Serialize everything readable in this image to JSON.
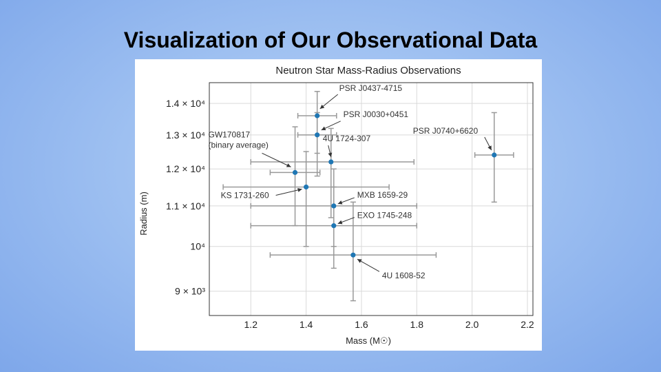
{
  "slide": {
    "title": "Visualization of Our Observational Data"
  },
  "chart_data": {
    "type": "scatter",
    "title": "Neutron Star Mass-Radius Observations",
    "xlabel": "Mass (M☉)",
    "ylabel": "Radius (m)",
    "xlim": [
      1.05,
      2.22
    ],
    "ylim": [
      8500,
      14700
    ],
    "y_scale": "log",
    "grid": true,
    "x_ticks": [
      {
        "value": 1.2,
        "label": "1.2"
      },
      {
        "value": 1.4,
        "label": "1.4"
      },
      {
        "value": 1.6,
        "label": "1.6"
      },
      {
        "value": 1.8,
        "label": "1.8"
      },
      {
        "value": 2.0,
        "label": "2.0"
      },
      {
        "value": 2.2,
        "label": "2.2"
      }
    ],
    "y_ticks": [
      {
        "value": 9000,
        "label": "9 × 10³"
      },
      {
        "value": 10000,
        "label": "10⁴"
      },
      {
        "value": 11000,
        "label": "1.1 × 10⁴"
      },
      {
        "value": 12000,
        "label": "1.2 × 10⁴"
      },
      {
        "value": 13000,
        "label": "1.3 × 10⁴"
      },
      {
        "value": 14000,
        "label": "1.4 × 10⁴"
      }
    ],
    "marker_color": "#1f77b4",
    "errorbar_color": "#999999",
    "points": [
      {
        "label": "PSR J0437-4715",
        "x": 1.44,
        "y": 13600,
        "xerr": [
          0.07,
          0.07
        ],
        "yerr": [
          1150,
          800
        ]
      },
      {
        "label": "PSR J0030+0451",
        "x": 1.44,
        "y": 13000,
        "xerr": [
          0.07,
          0.07
        ],
        "yerr": [
          1200,
          700
        ]
      },
      {
        "label": "GW170817\n(binary average)",
        "x": 1.36,
        "y": 11900,
        "xerr": [
          0.09,
          0.09
        ],
        "yerr": [
          1400,
          1350
        ]
      },
      {
        "label": "4U 1724-307",
        "x": 1.49,
        "y": 12200,
        "xerr": [
          0.29,
          0.3
        ],
        "yerr": [
          1500,
          1000
        ]
      },
      {
        "label": "KS 1731-260",
        "x": 1.4,
        "y": 11500,
        "xerr": [
          0.3,
          0.3
        ],
        "yerr": [
          1500,
          1000
        ]
      },
      {
        "label": "MXB 1659-29",
        "x": 1.5,
        "y": 11000,
        "xerr": [
          0.3,
          0.3
        ],
        "yerr": [
          1000,
          1000
        ]
      },
      {
        "label": "EXO 1745-248",
        "x": 1.5,
        "y": 10500,
        "xerr": [
          0.3,
          0.3
        ],
        "yerr": [
          1000,
          1000
        ]
      },
      {
        "label": "4U 1608-52",
        "x": 1.57,
        "y": 9800,
        "xerr": [
          0.3,
          0.3
        ],
        "yerr": [
          1000,
          1300
        ]
      },
      {
        "label": "PSR J0740+6620",
        "x": 2.08,
        "y": 12400,
        "xerr": [
          0.07,
          0.07
        ],
        "yerr": [
          1300,
          1300
        ]
      }
    ]
  }
}
